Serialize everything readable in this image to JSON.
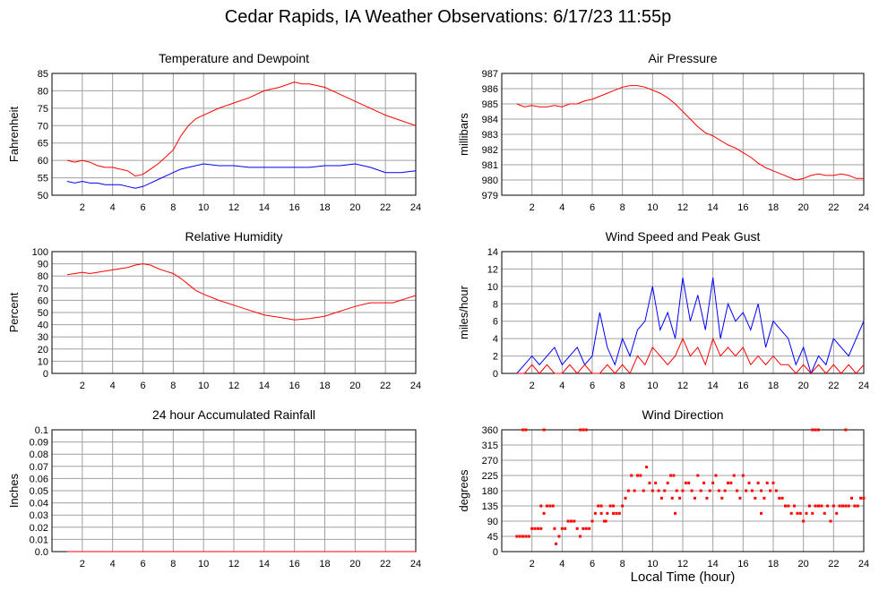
{
  "page": {
    "title": "Cedar Rapids, IA Weather Observations: 6/17/23 11:55p",
    "x_axis_label": "Local Time (hour)"
  },
  "colors": {
    "red": "#ff0000",
    "blue": "#0000ff",
    "grid": "#a0a0a0",
    "axis": "#000000"
  },
  "chart_data": [
    {
      "id": "temp",
      "type": "line",
      "title": "Temperature and Dewpoint",
      "ylabel": "Fahrenheit",
      "xlim": [
        0,
        24
      ],
      "ylim": [
        50,
        85
      ],
      "yticks": [
        50,
        55,
        60,
        65,
        70,
        75,
        80,
        85
      ],
      "xticks": [
        2,
        4,
        6,
        8,
        10,
        12,
        14,
        16,
        18,
        20,
        22,
        24
      ],
      "series": [
        {
          "color": "#ff0000",
          "x": [
            1,
            1.5,
            2,
            2.5,
            3,
            3.5,
            4,
            4.5,
            5,
            5.5,
            6,
            6.5,
            7,
            7.5,
            8,
            8.5,
            9,
            9.5,
            10,
            11,
            12,
            13,
            14,
            15,
            16,
            16.5,
            17,
            17.5,
            18,
            19,
            20,
            21,
            22,
            23,
            24
          ],
          "y": [
            60,
            59.5,
            60,
            59.5,
            58.5,
            58,
            58,
            57.5,
            57,
            55.5,
            56,
            57.5,
            59,
            61,
            63,
            67,
            70,
            72,
            73,
            75,
            76.5,
            78,
            80,
            81,
            82.5,
            82,
            82,
            81.5,
            81,
            79,
            77,
            75,
            73,
            71.5,
            70
          ]
        },
        {
          "color": "#0000ff",
          "x": [
            1,
            1.5,
            2,
            2.5,
            3,
            3.5,
            4,
            4.5,
            5,
            5.5,
            6,
            6.5,
            7,
            7.5,
            8,
            8.5,
            9,
            9.5,
            10,
            11,
            12,
            13,
            14,
            15,
            16,
            17,
            18,
            19,
            20,
            21,
            22,
            23,
            24
          ],
          "y": [
            54,
            53.5,
            54,
            53.5,
            53.5,
            53,
            53,
            53,
            52.5,
            52,
            52.5,
            53.5,
            54.5,
            55.5,
            56.5,
            57.5,
            58,
            58.5,
            59,
            58.5,
            58.5,
            58,
            58,
            58,
            58,
            58,
            58.5,
            58.5,
            59,
            58,
            56.5,
            56.5,
            57
          ]
        }
      ]
    },
    {
      "id": "pressure",
      "type": "line",
      "title": "Air Pressure",
      "ylabel": "millibars",
      "xlim": [
        0,
        24
      ],
      "ylim": [
        979,
        987
      ],
      "yticks": [
        979,
        980,
        981,
        982,
        983,
        984,
        985,
        986,
        987
      ],
      "xticks": [
        2,
        4,
        6,
        8,
        10,
        12,
        14,
        16,
        18,
        20,
        22,
        24
      ],
      "series": [
        {
          "color": "#ff0000",
          "x": [
            1,
            1.5,
            2,
            2.5,
            3,
            3.5,
            4,
            4.5,
            5,
            5.5,
            6,
            6.5,
            7,
            7.5,
            8,
            8.5,
            9,
            9.5,
            10,
            10.5,
            11,
            11.5,
            12,
            12.5,
            13,
            13.5,
            14,
            14.5,
            15,
            15.5,
            16,
            16.5,
            17,
            17.5,
            18,
            18.5,
            19,
            19.5,
            20,
            20.5,
            21,
            21.5,
            22,
            22.5,
            23,
            23.5,
            24
          ],
          "y": [
            985,
            984.8,
            984.9,
            984.8,
            984.8,
            984.9,
            984.8,
            985,
            985,
            985.2,
            985.3,
            985.5,
            985.7,
            985.9,
            986.1,
            986.2,
            986.2,
            986.1,
            985.9,
            985.7,
            985.4,
            985,
            984.5,
            984,
            983.5,
            983.1,
            982.9,
            982.6,
            982.3,
            982.1,
            981.8,
            981.5,
            981.1,
            980.8,
            980.6,
            980.4,
            980.2,
            980,
            980.1,
            980.3,
            980.4,
            980.3,
            980.3,
            980.4,
            980.3,
            980.1,
            980.1
          ]
        }
      ]
    },
    {
      "id": "humidity",
      "type": "line",
      "title": "Relative Humidity",
      "ylabel": "Percent",
      "xlim": [
        0,
        24
      ],
      "ylim": [
        0,
        100
      ],
      "yticks": [
        0,
        10,
        20,
        30,
        40,
        50,
        60,
        70,
        80,
        90,
        100
      ],
      "xticks": [
        2,
        4,
        6,
        8,
        10,
        12,
        14,
        16,
        18,
        20,
        22,
        24
      ],
      "series": [
        {
          "color": "#ff0000",
          "x": [
            1,
            1.5,
            2,
            2.5,
            3,
            3.5,
            4,
            4.5,
            5,
            5.5,
            6,
            6.5,
            7,
            7.5,
            8,
            8.5,
            9,
            9.5,
            10,
            11,
            12,
            13,
            14,
            15,
            16,
            17,
            18,
            19,
            20,
            21,
            22,
            22.5,
            23,
            23.5,
            24
          ],
          "y": [
            81,
            82,
            83,
            82,
            83,
            84,
            85,
            86,
            87,
            89,
            90,
            89,
            86,
            84,
            82,
            78,
            73,
            68,
            65,
            60,
            56,
            52,
            48,
            46,
            44,
            45,
            47,
            51,
            55,
            58,
            58,
            58,
            60,
            62,
            64
          ]
        }
      ]
    },
    {
      "id": "wind",
      "type": "line",
      "title": "Wind Speed and Peak Gust",
      "ylabel": "miles/hour",
      "xlim": [
        0,
        24
      ],
      "ylim": [
        0,
        14
      ],
      "yticks": [
        0,
        2,
        4,
        6,
        8,
        10,
        12,
        14
      ],
      "xticks": [
        2,
        4,
        6,
        8,
        10,
        12,
        14,
        16,
        18,
        20,
        22,
        24
      ],
      "series": [
        {
          "color": "#0000ff",
          "x": [
            1,
            1.5,
            2,
            2.5,
            3,
            3.5,
            4,
            4.5,
            5,
            5.5,
            6,
            6.5,
            7,
            7.5,
            8,
            8.5,
            9,
            9.5,
            10,
            10.5,
            11,
            11.5,
            12,
            12.5,
            13,
            13.5,
            14,
            14.5,
            15,
            15.5,
            16,
            16.5,
            17,
            17.5,
            18,
            18.5,
            19,
            19.5,
            20,
            20.5,
            21,
            21.5,
            22,
            22.5,
            23,
            23.5,
            24
          ],
          "y": [
            0,
            1,
            2,
            1,
            2,
            3,
            1,
            2,
            3,
            1,
            2,
            7,
            3,
            1,
            4,
            2,
            5,
            6,
            10,
            5,
            7,
            4,
            11,
            6,
            9,
            5,
            11,
            4,
            8,
            6,
            7,
            5,
            8,
            3,
            6,
            5,
            4,
            1,
            3,
            0,
            2,
            1,
            4,
            3,
            2,
            4,
            6
          ]
        },
        {
          "color": "#ff0000",
          "x": [
            1,
            1.5,
            2,
            2.5,
            3,
            3.5,
            4,
            4.5,
            5,
            5.5,
            6,
            6.5,
            7,
            7.5,
            8,
            8.5,
            9,
            9.5,
            10,
            10.5,
            11,
            11.5,
            12,
            12.5,
            13,
            13.5,
            14,
            14.5,
            15,
            15.5,
            16,
            16.5,
            17,
            17.5,
            18,
            18.5,
            19,
            19.5,
            20,
            20.5,
            21,
            21.5,
            22,
            22.5,
            23,
            23.5,
            24
          ],
          "y": [
            0,
            0,
            1,
            0,
            1,
            0,
            0,
            1,
            0,
            1,
            0,
            0,
            1,
            0,
            1,
            0,
            2,
            1,
            3,
            2,
            1,
            2,
            4,
            2,
            3,
            1,
            4,
            2,
            3,
            2,
            3,
            1,
            2,
            1,
            2,
            1,
            1,
            0,
            1,
            0,
            1,
            0,
            1,
            0,
            1,
            0,
            1
          ]
        }
      ]
    },
    {
      "id": "rain",
      "type": "line",
      "title": "24 hour Accumulated Rainfall",
      "ylabel": "Inches",
      "xlim": [
        0,
        24
      ],
      "ylim": [
        0,
        0.1
      ],
      "yticks": [
        "0.0",
        "0.01",
        "0.02",
        "0.03",
        "0.04",
        "0.05",
        "0.06",
        "0.07",
        "0.08",
        "0.09",
        "0.1"
      ],
      "xticks": [
        2,
        4,
        6,
        8,
        10,
        12,
        14,
        16,
        18,
        20,
        22,
        24
      ],
      "series": [
        {
          "color": "#ff0000",
          "x": [
            1,
            24
          ],
          "y": [
            0,
            0
          ]
        }
      ]
    },
    {
      "id": "direction",
      "type": "scatter",
      "title": "Wind Direction",
      "ylabel": "degrees",
      "xlim": [
        0,
        24
      ],
      "ylim": [
        0,
        360
      ],
      "yticks": [
        0,
        45,
        90,
        135,
        180,
        225,
        270,
        315,
        360
      ],
      "xticks": [
        2,
        4,
        6,
        8,
        10,
        12,
        14,
        16,
        18,
        20,
        22,
        24
      ],
      "series": [
        {
          "color": "#ff0000",
          "x": [
            1,
            1.2,
            1.4,
            1.6,
            1.8,
            2,
            2.2,
            2.4,
            2.6,
            2.8,
            3,
            3.2,
            3.4,
            3.6,
            3.8,
            4,
            4.2,
            4.4,
            4.6,
            4.8,
            5,
            5.2,
            5.4,
            5.6,
            5.8,
            6,
            6.2,
            6.4,
            6.6,
            6.8,
            7,
            7.2,
            7.4,
            7.6,
            7.8,
            8,
            8.2,
            8.4,
            8.6,
            8.8,
            9,
            9.2,
            9.4,
            9.6,
            9.8,
            10,
            10.2,
            10.4,
            10.6,
            10.8,
            11,
            11.2,
            11.4,
            11.6,
            11.8,
            12,
            12.2,
            12.4,
            12.6,
            12.8,
            13,
            13.2,
            13.4,
            13.6,
            13.8,
            14,
            14.2,
            14.4,
            14.6,
            14.8,
            15,
            15.2,
            15.4,
            15.6,
            15.8,
            16,
            16.2,
            16.4,
            16.6,
            16.8,
            17,
            17.2,
            17.4,
            17.6,
            17.8,
            18,
            18.2,
            18.4,
            18.6,
            18.8,
            19,
            19.2,
            19.4,
            19.6,
            19.8,
            20,
            20.2,
            20.4,
            20.6,
            20.8,
            21,
            21.2,
            21.4,
            21.6,
            21.8,
            22,
            22.2,
            22.4,
            22.6,
            22.8,
            23,
            23.2,
            23.4,
            23.6,
            23.8,
            24,
            1.4,
            1.6,
            2.8,
            5.2,
            5.4,
            5.6,
            20.6,
            20.8,
            21,
            22.8,
            3.5,
            6.6,
            6.9,
            7.4,
            11.3,
            11.5,
            17.2,
            2.6
          ],
          "y": [
            45,
            45,
            45,
            45,
            45,
            68,
            68,
            68,
            68,
            113,
            135,
            135,
            135,
            23,
            45,
            68,
            68,
            90,
            90,
            90,
            68,
            45,
            68,
            68,
            68,
            90,
            113,
            135,
            135,
            90,
            113,
            135,
            135,
            113,
            113,
            135,
            158,
            180,
            225,
            180,
            225,
            225,
            180,
            250,
            203,
            180,
            203,
            180,
            158,
            180,
            203,
            225,
            225,
            180,
            158,
            180,
            203,
            203,
            180,
            158,
            225,
            180,
            203,
            158,
            180,
            203,
            225,
            180,
            158,
            180,
            203,
            203,
            225,
            180,
            158,
            225,
            180,
            203,
            180,
            158,
            203,
            180,
            158,
            203,
            180,
            203,
            180,
            158,
            158,
            135,
            135,
            113,
            135,
            113,
            113,
            90,
            113,
            135,
            113,
            135,
            135,
            135,
            113,
            135,
            90,
            135,
            113,
            135,
            135,
            135,
            135,
            158,
            135,
            135,
            158,
            158,
            360,
            360,
            360,
            360,
            360,
            360,
            360,
            360,
            360,
            360,
            68,
            113,
            90,
            113,
            158,
            113,
            113,
            135
          ],
          "marker": "square"
        }
      ]
    }
  ]
}
